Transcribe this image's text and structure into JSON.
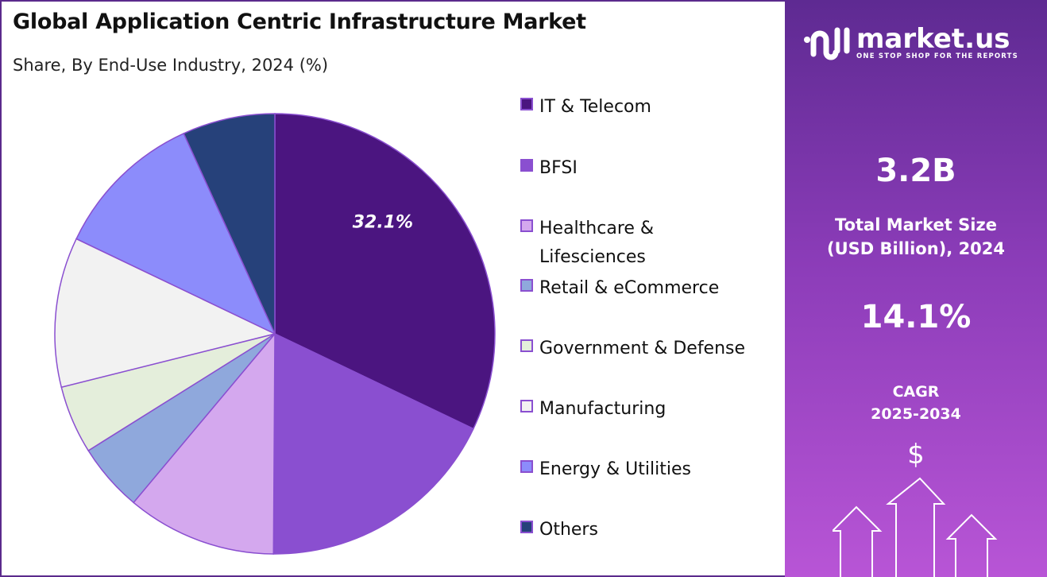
{
  "header": {
    "title": "Global Application Centric Infrastructure Market",
    "subtitle": "Share, By End-Use Industry, 2024 (%)"
  },
  "chart_data": {
    "type": "pie",
    "title": "Global Application Centric Infrastructure Market",
    "subtitle": "Share, By End-Use Industry, 2024 (%)",
    "legend_position": "right",
    "categories": [
      "IT & Telecom",
      "BFSI",
      "Healthcare & Lifesciences",
      "Retail & eCommerce",
      "Government & Defense",
      "Manufacturing",
      "Energy & Utilities",
      "Others"
    ],
    "legend_lines": [
      [
        "IT & Telecom"
      ],
      [
        "BFSI"
      ],
      [
        "Healthcare &",
        "Lifesciences"
      ],
      [
        "Retail & eCommerce"
      ],
      [
        "Government & Defense"
      ],
      [
        "Manufacturing"
      ],
      [
        "Energy & Utilities"
      ],
      [
        "Others"
      ]
    ],
    "values": [
      32.1,
      18.0,
      11.0,
      5.0,
      5.0,
      11.0,
      11.1,
      6.8
    ],
    "colors": [
      "#4b1580",
      "#8a4fd0",
      "#d4a8ee",
      "#8fa8dc",
      "#e4eedb",
      "#f2f2f2",
      "#8c8cfb",
      "#26417a"
    ],
    "data_labels": [
      "32.1%",
      "",
      "",
      "",
      "",
      "",
      "",
      ""
    ]
  },
  "panel": {
    "brand": "market.us",
    "tagline": "ONE STOP SHOP FOR THE REPORTS",
    "market_size": "3.2B",
    "market_size_label_1": "Total Market Size",
    "market_size_label_2": "(USD Billion), 2024",
    "cagr": "14.1%",
    "cagr_label_1": "CAGR",
    "cagr_label_2": "2025-2034",
    "dollar_icon": "$"
  }
}
